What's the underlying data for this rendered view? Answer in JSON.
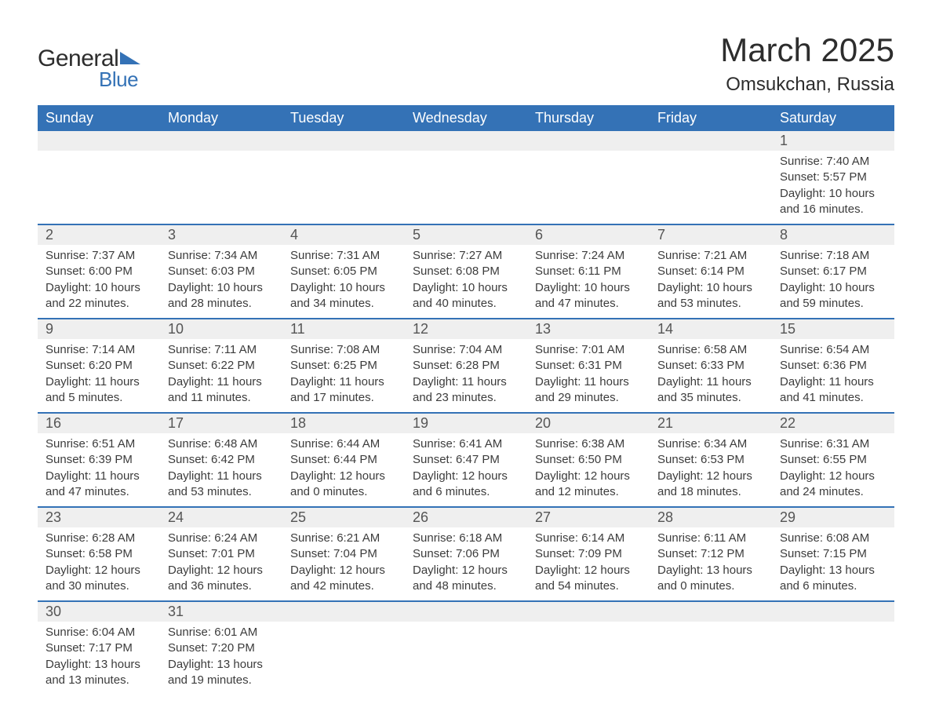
{
  "brand": {
    "line1a": "General",
    "line2": "Blue"
  },
  "title": "March 2025",
  "location": "Omsukchan, Russia",
  "colors": {
    "header_bg": "#3472b6",
    "header_text": "#ffffff",
    "row_bg": "#efefef",
    "divider": "#3472b6",
    "text": "#3c3c3c",
    "logo_blue": "#3472b6"
  },
  "day_labels": [
    "Sunday",
    "Monday",
    "Tuesday",
    "Wednesday",
    "Thursday",
    "Friday",
    "Saturday"
  ],
  "weeks": [
    [
      null,
      null,
      null,
      null,
      null,
      null,
      {
        "n": "1",
        "sunrise": "Sunrise: 7:40 AM",
        "sunset": "Sunset: 5:57 PM",
        "dl1": "Daylight: 10 hours",
        "dl2": "and 16 minutes."
      }
    ],
    [
      {
        "n": "2",
        "sunrise": "Sunrise: 7:37 AM",
        "sunset": "Sunset: 6:00 PM",
        "dl1": "Daylight: 10 hours",
        "dl2": "and 22 minutes."
      },
      {
        "n": "3",
        "sunrise": "Sunrise: 7:34 AM",
        "sunset": "Sunset: 6:03 PM",
        "dl1": "Daylight: 10 hours",
        "dl2": "and 28 minutes."
      },
      {
        "n": "4",
        "sunrise": "Sunrise: 7:31 AM",
        "sunset": "Sunset: 6:05 PM",
        "dl1": "Daylight: 10 hours",
        "dl2": "and 34 minutes."
      },
      {
        "n": "5",
        "sunrise": "Sunrise: 7:27 AM",
        "sunset": "Sunset: 6:08 PM",
        "dl1": "Daylight: 10 hours",
        "dl2": "and 40 minutes."
      },
      {
        "n": "6",
        "sunrise": "Sunrise: 7:24 AM",
        "sunset": "Sunset: 6:11 PM",
        "dl1": "Daylight: 10 hours",
        "dl2": "and 47 minutes."
      },
      {
        "n": "7",
        "sunrise": "Sunrise: 7:21 AM",
        "sunset": "Sunset: 6:14 PM",
        "dl1": "Daylight: 10 hours",
        "dl2": "and 53 minutes."
      },
      {
        "n": "8",
        "sunrise": "Sunrise: 7:18 AM",
        "sunset": "Sunset: 6:17 PM",
        "dl1": "Daylight: 10 hours",
        "dl2": "and 59 minutes."
      }
    ],
    [
      {
        "n": "9",
        "sunrise": "Sunrise: 7:14 AM",
        "sunset": "Sunset: 6:20 PM",
        "dl1": "Daylight: 11 hours",
        "dl2": "and 5 minutes."
      },
      {
        "n": "10",
        "sunrise": "Sunrise: 7:11 AM",
        "sunset": "Sunset: 6:22 PM",
        "dl1": "Daylight: 11 hours",
        "dl2": "and 11 minutes."
      },
      {
        "n": "11",
        "sunrise": "Sunrise: 7:08 AM",
        "sunset": "Sunset: 6:25 PM",
        "dl1": "Daylight: 11 hours",
        "dl2": "and 17 minutes."
      },
      {
        "n": "12",
        "sunrise": "Sunrise: 7:04 AM",
        "sunset": "Sunset: 6:28 PM",
        "dl1": "Daylight: 11 hours",
        "dl2": "and 23 minutes."
      },
      {
        "n": "13",
        "sunrise": "Sunrise: 7:01 AM",
        "sunset": "Sunset: 6:31 PM",
        "dl1": "Daylight: 11 hours",
        "dl2": "and 29 minutes."
      },
      {
        "n": "14",
        "sunrise": "Sunrise: 6:58 AM",
        "sunset": "Sunset: 6:33 PM",
        "dl1": "Daylight: 11 hours",
        "dl2": "and 35 minutes."
      },
      {
        "n": "15",
        "sunrise": "Sunrise: 6:54 AM",
        "sunset": "Sunset: 6:36 PM",
        "dl1": "Daylight: 11 hours",
        "dl2": "and 41 minutes."
      }
    ],
    [
      {
        "n": "16",
        "sunrise": "Sunrise: 6:51 AM",
        "sunset": "Sunset: 6:39 PM",
        "dl1": "Daylight: 11 hours",
        "dl2": "and 47 minutes."
      },
      {
        "n": "17",
        "sunrise": "Sunrise: 6:48 AM",
        "sunset": "Sunset: 6:42 PM",
        "dl1": "Daylight: 11 hours",
        "dl2": "and 53 minutes."
      },
      {
        "n": "18",
        "sunrise": "Sunrise: 6:44 AM",
        "sunset": "Sunset: 6:44 PM",
        "dl1": "Daylight: 12 hours",
        "dl2": "and 0 minutes."
      },
      {
        "n": "19",
        "sunrise": "Sunrise: 6:41 AM",
        "sunset": "Sunset: 6:47 PM",
        "dl1": "Daylight: 12 hours",
        "dl2": "and 6 minutes."
      },
      {
        "n": "20",
        "sunrise": "Sunrise: 6:38 AM",
        "sunset": "Sunset: 6:50 PM",
        "dl1": "Daylight: 12 hours",
        "dl2": "and 12 minutes."
      },
      {
        "n": "21",
        "sunrise": "Sunrise: 6:34 AM",
        "sunset": "Sunset: 6:53 PM",
        "dl1": "Daylight: 12 hours",
        "dl2": "and 18 minutes."
      },
      {
        "n": "22",
        "sunrise": "Sunrise: 6:31 AM",
        "sunset": "Sunset: 6:55 PM",
        "dl1": "Daylight: 12 hours",
        "dl2": "and 24 minutes."
      }
    ],
    [
      {
        "n": "23",
        "sunrise": "Sunrise: 6:28 AM",
        "sunset": "Sunset: 6:58 PM",
        "dl1": "Daylight: 12 hours",
        "dl2": "and 30 minutes."
      },
      {
        "n": "24",
        "sunrise": "Sunrise: 6:24 AM",
        "sunset": "Sunset: 7:01 PM",
        "dl1": "Daylight: 12 hours",
        "dl2": "and 36 minutes."
      },
      {
        "n": "25",
        "sunrise": "Sunrise: 6:21 AM",
        "sunset": "Sunset: 7:04 PM",
        "dl1": "Daylight: 12 hours",
        "dl2": "and 42 minutes."
      },
      {
        "n": "26",
        "sunrise": "Sunrise: 6:18 AM",
        "sunset": "Sunset: 7:06 PM",
        "dl1": "Daylight: 12 hours",
        "dl2": "and 48 minutes."
      },
      {
        "n": "27",
        "sunrise": "Sunrise: 6:14 AM",
        "sunset": "Sunset: 7:09 PM",
        "dl1": "Daylight: 12 hours",
        "dl2": "and 54 minutes."
      },
      {
        "n": "28",
        "sunrise": "Sunrise: 6:11 AM",
        "sunset": "Sunset: 7:12 PM",
        "dl1": "Daylight: 13 hours",
        "dl2": "and 0 minutes."
      },
      {
        "n": "29",
        "sunrise": "Sunrise: 6:08 AM",
        "sunset": "Sunset: 7:15 PM",
        "dl1": "Daylight: 13 hours",
        "dl2": "and 6 minutes."
      }
    ],
    [
      {
        "n": "30",
        "sunrise": "Sunrise: 6:04 AM",
        "sunset": "Sunset: 7:17 PM",
        "dl1": "Daylight: 13 hours",
        "dl2": "and 13 minutes."
      },
      {
        "n": "31",
        "sunrise": "Sunrise: 6:01 AM",
        "sunset": "Sunset: 7:20 PM",
        "dl1": "Daylight: 13 hours",
        "dl2": "and 19 minutes."
      },
      null,
      null,
      null,
      null,
      null
    ]
  ]
}
